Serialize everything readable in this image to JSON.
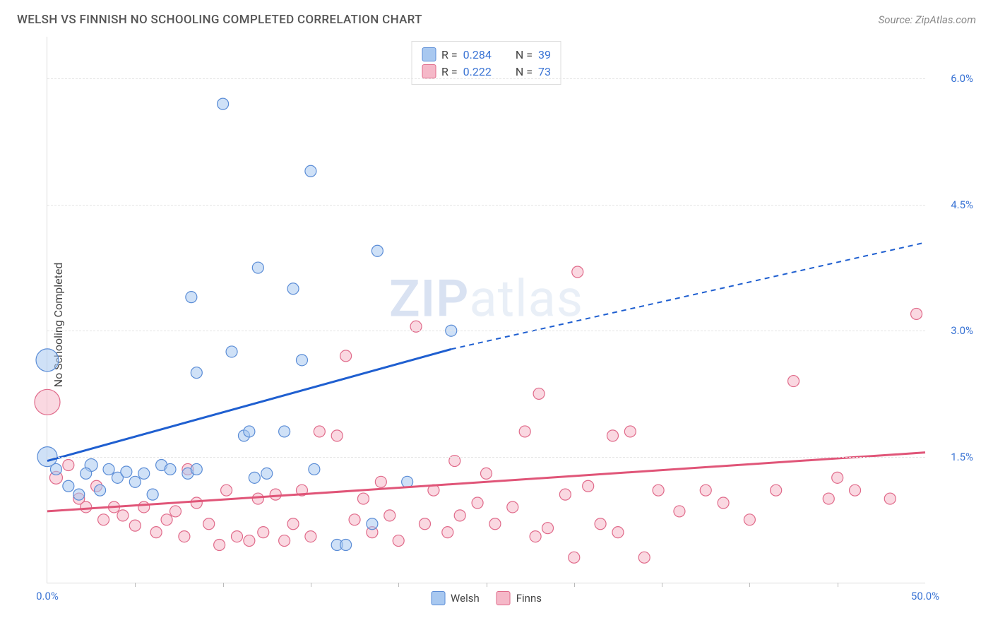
{
  "header": {
    "title": "WELSH VS FINNISH NO SCHOOLING COMPLETED CORRELATION CHART",
    "source": "Source: ZipAtlas.com"
  },
  "watermark": {
    "zip": "ZIP",
    "atlas": "atlas"
  },
  "chart": {
    "type": "scatter",
    "y_axis_title": "No Schooling Completed",
    "xlim": [
      0,
      50
    ],
    "ylim": [
      0,
      6.5
    ],
    "x_ticks_minor_step": 5,
    "x_labels": [
      {
        "v": 0,
        "t": "0.0%"
      },
      {
        "v": 50,
        "t": "50.0%"
      }
    ],
    "y_gridlines": [
      1.5,
      3.0,
      4.5,
      6.0
    ],
    "y_labels": [
      {
        "v": 1.5,
        "t": "1.5%"
      },
      {
        "v": 3.0,
        "t": "3.0%"
      },
      {
        "v": 4.5,
        "t": "4.5%"
      },
      {
        "v": 6.0,
        "t": "6.0%"
      }
    ],
    "series": {
      "welsh": {
        "label": "Welsh",
        "fill": "#a8c8f0",
        "fill_opacity": 0.55,
        "stroke": "#5a8cd6",
        "line_color": "#1f5fd0",
        "R": "0.284",
        "N": "39",
        "trend": {
          "x1": 0,
          "y1": 1.45,
          "x_solid_end": 23,
          "y_solid_end": 2.78,
          "x2": 50,
          "y2": 4.05
        },
        "points": [
          {
            "x": 0,
            "y": 2.65,
            "r": 16
          },
          {
            "x": 0,
            "y": 1.5,
            "r": 14
          },
          {
            "x": 0.5,
            "y": 1.35,
            "r": 8
          },
          {
            "x": 1.2,
            "y": 1.15,
            "r": 8
          },
          {
            "x": 1.8,
            "y": 1.05,
            "r": 8
          },
          {
            "x": 2.5,
            "y": 1.4,
            "r": 9
          },
          {
            "x": 2.2,
            "y": 1.3,
            "r": 8
          },
          {
            "x": 3.0,
            "y": 1.1,
            "r": 8
          },
          {
            "x": 3.5,
            "y": 1.35,
            "r": 8
          },
          {
            "x": 4.0,
            "y": 1.25,
            "r": 8
          },
          {
            "x": 4.5,
            "y": 1.32,
            "r": 8
          },
          {
            "x": 5.0,
            "y": 1.2,
            "r": 8
          },
          {
            "x": 5.5,
            "y": 1.3,
            "r": 8
          },
          {
            "x": 6.0,
            "y": 1.05,
            "r": 8
          },
          {
            "x": 6.5,
            "y": 1.4,
            "r": 8
          },
          {
            "x": 7.0,
            "y": 1.35,
            "r": 8
          },
          {
            "x": 8.0,
            "y": 1.3,
            "r": 8
          },
          {
            "x": 8.5,
            "y": 1.35,
            "r": 8
          },
          {
            "x": 8.2,
            "y": 3.4,
            "r": 8
          },
          {
            "x": 8.5,
            "y": 2.5,
            "r": 8
          },
          {
            "x": 10.0,
            "y": 5.7,
            "r": 8
          },
          {
            "x": 10.5,
            "y": 2.75,
            "r": 8
          },
          {
            "x": 11.2,
            "y": 1.75,
            "r": 8
          },
          {
            "x": 11.5,
            "y": 1.8,
            "r": 8
          },
          {
            "x": 11.8,
            "y": 1.25,
            "r": 8
          },
          {
            "x": 12.0,
            "y": 3.75,
            "r": 8
          },
          {
            "x": 12.5,
            "y": 1.3,
            "r": 8
          },
          {
            "x": 13.5,
            "y": 1.8,
            "r": 8
          },
          {
            "x": 14.0,
            "y": 3.5,
            "r": 8
          },
          {
            "x": 14.5,
            "y": 2.65,
            "r": 8
          },
          {
            "x": 15.0,
            "y": 4.9,
            "r": 8
          },
          {
            "x": 15.2,
            "y": 1.35,
            "r": 8
          },
          {
            "x": 16.5,
            "y": 0.45,
            "r": 8
          },
          {
            "x": 17.0,
            "y": 0.45,
            "r": 8
          },
          {
            "x": 18.5,
            "y": 0.7,
            "r": 8
          },
          {
            "x": 18.8,
            "y": 3.95,
            "r": 8
          },
          {
            "x": 20.5,
            "y": 1.2,
            "r": 8
          },
          {
            "x": 23.0,
            "y": 3.0,
            "r": 8
          }
        ]
      },
      "finns": {
        "label": "Finns",
        "fill": "#f5b8c8",
        "fill_opacity": 0.55,
        "stroke": "#e06a8a",
        "line_color": "#e05578",
        "R": "0.222",
        "N": "73",
        "trend": {
          "x1": 0,
          "y1": 0.85,
          "x2": 50,
          "y2": 1.55
        },
        "points": [
          {
            "x": 0,
            "y": 2.15,
            "r": 18
          },
          {
            "x": 0.5,
            "y": 1.25,
            "r": 9
          },
          {
            "x": 1.2,
            "y": 1.4,
            "r": 8
          },
          {
            "x": 1.8,
            "y": 1.0,
            "r": 8
          },
          {
            "x": 2.2,
            "y": 0.9,
            "r": 8
          },
          {
            "x": 2.8,
            "y": 1.15,
            "r": 8
          },
          {
            "x": 3.2,
            "y": 0.75,
            "r": 8
          },
          {
            "x": 3.8,
            "y": 0.9,
            "r": 8
          },
          {
            "x": 4.3,
            "y": 0.8,
            "r": 8
          },
          {
            "x": 5.0,
            "y": 0.68,
            "r": 8
          },
          {
            "x": 5.5,
            "y": 0.9,
            "r": 8
          },
          {
            "x": 6.2,
            "y": 0.6,
            "r": 8
          },
          {
            "x": 6.8,
            "y": 0.75,
            "r": 8
          },
          {
            "x": 7.3,
            "y": 0.85,
            "r": 8
          },
          {
            "x": 7.8,
            "y": 0.55,
            "r": 8
          },
          {
            "x": 8.0,
            "y": 1.35,
            "r": 8
          },
          {
            "x": 8.5,
            "y": 0.95,
            "r": 8
          },
          {
            "x": 9.2,
            "y": 0.7,
            "r": 8
          },
          {
            "x": 9.8,
            "y": 0.45,
            "r": 8
          },
          {
            "x": 10.2,
            "y": 1.1,
            "r": 8
          },
          {
            "x": 10.8,
            "y": 0.55,
            "r": 8
          },
          {
            "x": 11.5,
            "y": 0.5,
            "r": 8
          },
          {
            "x": 12.0,
            "y": 1.0,
            "r": 8
          },
          {
            "x": 12.3,
            "y": 0.6,
            "r": 8
          },
          {
            "x": 13.0,
            "y": 1.05,
            "r": 8
          },
          {
            "x": 13.5,
            "y": 0.5,
            "r": 8
          },
          {
            "x": 14.0,
            "y": 0.7,
            "r": 8
          },
          {
            "x": 14.5,
            "y": 1.1,
            "r": 8
          },
          {
            "x": 15.0,
            "y": 0.55,
            "r": 8
          },
          {
            "x": 15.5,
            "y": 1.8,
            "r": 8
          },
          {
            "x": 16.5,
            "y": 1.75,
            "r": 8
          },
          {
            "x": 17.0,
            "y": 2.7,
            "r": 8
          },
          {
            "x": 17.5,
            "y": 0.75,
            "r": 8
          },
          {
            "x": 18.0,
            "y": 1.0,
            "r": 8
          },
          {
            "x": 18.5,
            "y": 0.6,
            "r": 8
          },
          {
            "x": 19.0,
            "y": 1.2,
            "r": 8
          },
          {
            "x": 19.5,
            "y": 0.8,
            "r": 8
          },
          {
            "x": 20.0,
            "y": 0.5,
            "r": 8
          },
          {
            "x": 21.0,
            "y": 3.05,
            "r": 8
          },
          {
            "x": 21.5,
            "y": 0.7,
            "r": 8
          },
          {
            "x": 22.0,
            "y": 1.1,
            "r": 8
          },
          {
            "x": 22.8,
            "y": 0.6,
            "r": 8
          },
          {
            "x": 23.2,
            "y": 1.45,
            "r": 8
          },
          {
            "x": 23.5,
            "y": 0.8,
            "r": 8
          },
          {
            "x": 24.5,
            "y": 0.95,
            "r": 8
          },
          {
            "x": 25.0,
            "y": 1.3,
            "r": 8
          },
          {
            "x": 25.5,
            "y": 0.7,
            "r": 8
          },
          {
            "x": 26.5,
            "y": 0.9,
            "r": 8
          },
          {
            "x": 27.2,
            "y": 1.8,
            "r": 8
          },
          {
            "x": 27.8,
            "y": 0.55,
            "r": 8
          },
          {
            "x": 28.0,
            "y": 2.25,
            "r": 8
          },
          {
            "x": 28.5,
            "y": 0.65,
            "r": 8
          },
          {
            "x": 29.5,
            "y": 1.05,
            "r": 8
          },
          {
            "x": 30.0,
            "y": 0.3,
            "r": 8
          },
          {
            "x": 30.2,
            "y": 3.7,
            "r": 8
          },
          {
            "x": 30.8,
            "y": 1.15,
            "r": 8
          },
          {
            "x": 31.5,
            "y": 0.7,
            "r": 8
          },
          {
            "x": 32.2,
            "y": 1.75,
            "r": 8
          },
          {
            "x": 32.5,
            "y": 0.6,
            "r": 8
          },
          {
            "x": 33.2,
            "y": 1.8,
            "r": 8
          },
          {
            "x": 34.0,
            "y": 0.3,
            "r": 8
          },
          {
            "x": 34.8,
            "y": 1.1,
            "r": 8
          },
          {
            "x": 36.0,
            "y": 0.85,
            "r": 8
          },
          {
            "x": 37.5,
            "y": 1.1,
            "r": 8
          },
          {
            "x": 38.5,
            "y": 0.95,
            "r": 8
          },
          {
            "x": 40.0,
            "y": 0.75,
            "r": 8
          },
          {
            "x": 41.5,
            "y": 1.1,
            "r": 8
          },
          {
            "x": 42.5,
            "y": 2.4,
            "r": 8
          },
          {
            "x": 44.5,
            "y": 1.0,
            "r": 8
          },
          {
            "x": 45.0,
            "y": 1.25,
            "r": 8
          },
          {
            "x": 46.0,
            "y": 1.1,
            "r": 8
          },
          {
            "x": 48.0,
            "y": 1.0,
            "r": 8
          },
          {
            "x": 49.5,
            "y": 3.2,
            "r": 8
          }
        ]
      }
    }
  }
}
